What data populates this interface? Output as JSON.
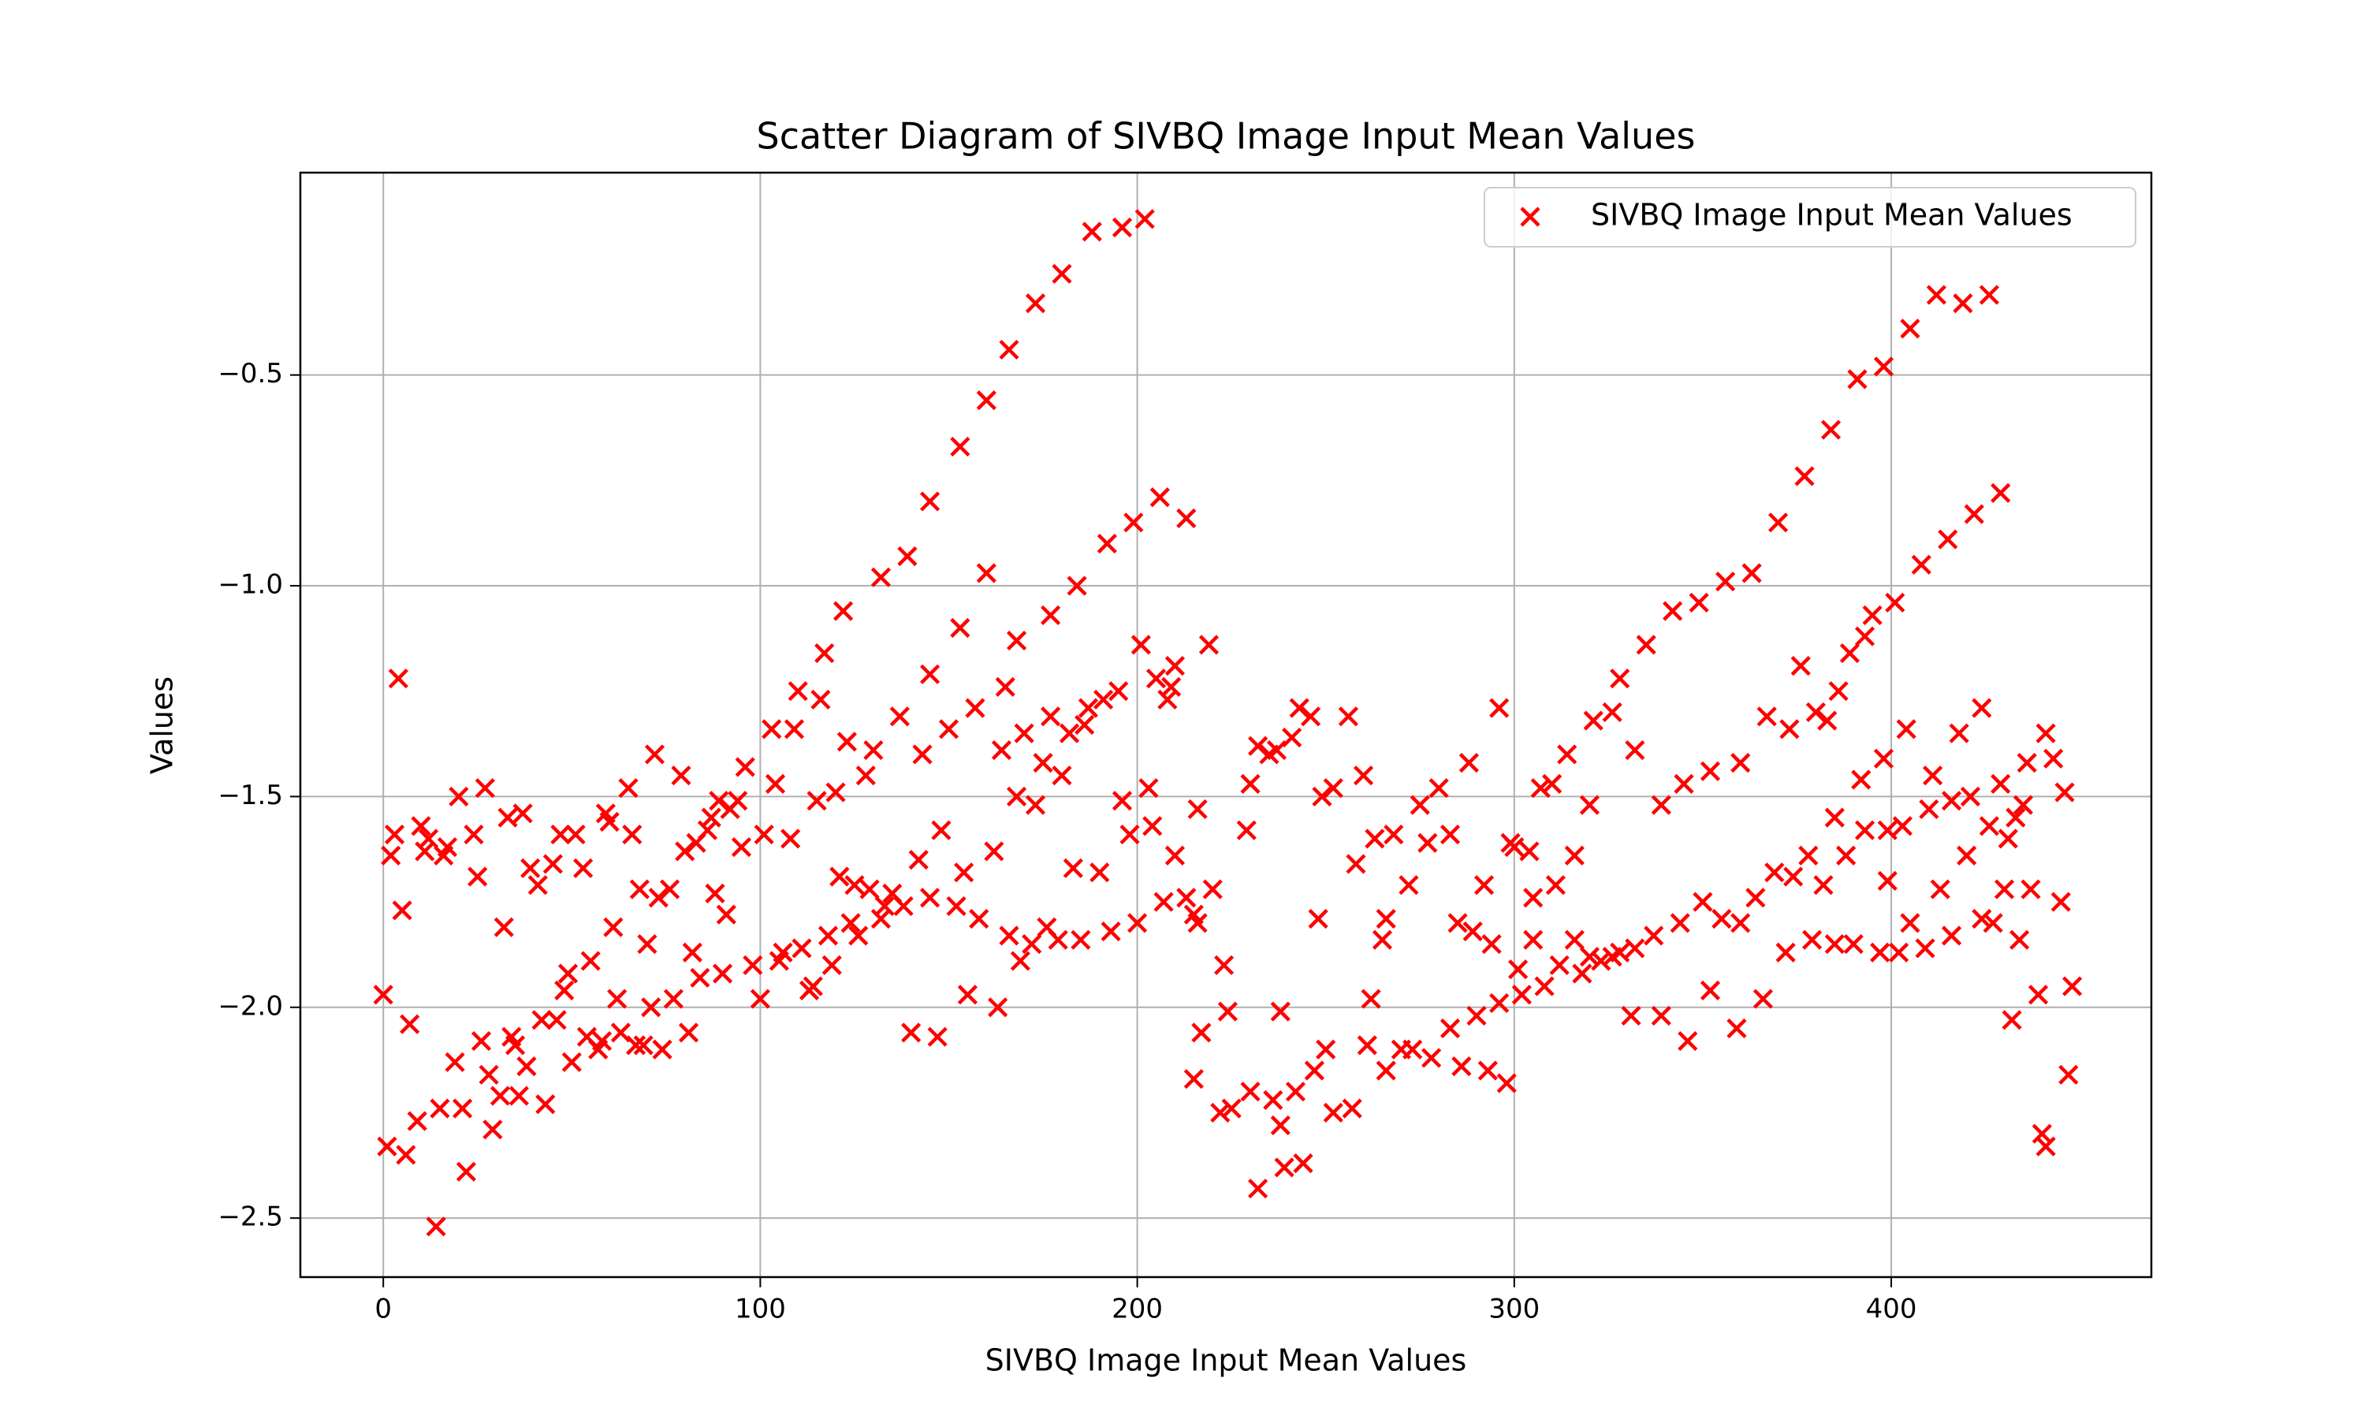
{
  "chart_data": {
    "type": "scatter",
    "title": "Scatter Diagram of SIVBQ Image Input Mean Values",
    "xlabel": "SIVBQ Image Input Mean Values",
    "ylabel": "Values",
    "xlim": [
      -22,
      469
    ],
    "ylim": [
      -2.64,
      -0.02
    ],
    "xticks": [
      0,
      100,
      200,
      300,
      400
    ],
    "yticks": [
      {
        "value": -2.5,
        "label": "−2.5"
      },
      {
        "value": -2.0,
        "label": "−2.0"
      },
      {
        "value": -1.5,
        "label": "−1.5"
      },
      {
        "value": -1.0,
        "label": "−1.0"
      },
      {
        "value": -0.5,
        "label": "−0.5"
      }
    ],
    "grid": true,
    "legend": "upper right",
    "x": [
      117,
      122,
      132,
      139,
      145,
      153,
      160,
      166,
      173,
      180,
      188,
      196,
      202,
      153,
      145,
      168,
      160,
      177,
      184,
      192,
      199,
      206,
      213,
      219,
      210,
      370,
      377,
      384,
      391,
      398,
      405,
      412,
      419,
      426,
      401,
      408,
      415,
      422,
      429,
      395,
      389,
      393,
      386,
      376,
      363,
      356,
      349,
      342,
      335,
      328,
      321,
      314,
      307,
      424,
      418,
      411,
      404,
      398,
      392,
      383,
      380,
      373,
      367,
      360,
      352,
      345,
      339,
      332,
      326,
      441,
      443,
      436,
      429,
      433,
      446,
      440,
      441,
      447,
      448,
      445,
      439,
      437,
      432,
      434,
      430,
      427,
      424,
      420,
      416,
      413,
      409,
      405,
      402,
      399,
      397,
      390,
      385,
      379,
      372,
      366,
      359,
      352,
      346,
      339,
      331,
      435,
      431,
      426,
      421,
      416,
      410,
      403,
      399,
      393,
      388,
      385,
      382,
      378,
      374,
      369,
      364,
      360,
      355,
      350,
      344,
      337,
      332,
      326,
      320,
      316,
      311,
      305,
      300,
      215,
      217,
      222,
      225,
      230,
      232,
      236,
      238,
      239,
      244,
      242,
      247,
      250,
      252,
      257,
      261,
      266,
      270,
      273,
      278,
      283,
      286,
      290,
      293,
      298,
      302,
      308,
      312,
      318,
      323,
      328,
      216,
      220,
      223,
      224,
      229,
      230,
      232,
      235,
      237,
      238,
      241,
      243,
      246,
      249,
      252,
      256,
      258,
      260,
      263,
      266,
      268,
      272,
      275,
      277,
      280,
      283,
      288,
      292,
      296,
      299,
      304,
      310,
      316,
      320,
      248,
      262,
      265,
      285,
      289,
      294,
      296,
      301,
      305,
      0,
      1,
      2,
      3,
      4,
      5,
      6,
      7,
      9,
      10,
      11,
      12,
      14,
      15,
      16,
      17,
      19,
      20,
      21,
      22,
      24,
      25,
      26,
      27,
      28,
      29,
      31,
      32,
      33,
      34,
      35,
      36,
      37,
      38,
      39,
      41,
      42,
      43,
      45,
      46,
      47,
      48,
      49,
      50,
      51,
      53,
      54,
      55,
      57,
      58,
      59,
      60,
      61,
      62,
      63,
      65,
      66,
      67,
      68,
      69,
      70,
      71,
      72,
      73,
      74,
      76,
      77,
      79,
      80,
      81,
      82,
      83,
      84,
      86,
      87,
      88,
      89,
      90,
      91,
      92,
      94,
      95,
      96,
      98,
      100,
      101,
      103,
      104,
      105,
      106,
      108,
      109,
      110,
      111,
      113,
      114,
      115,
      116,
      118,
      119,
      120,
      121,
      123,
      124,
      125,
      126,
      128,
      129,
      130,
      132,
      133,
      135,
      137,
      138,
      140,
      142,
      143,
      145,
      147,
      148,
      150,
      152,
      154,
      155,
      157,
      158,
      162,
      163,
      164,
      165,
      166,
      168,
      169,
      170,
      172,
      173,
      175,
      176,
      177,
      179,
      180,
      182,
      183,
      185,
      186,
      187,
      190,
      191,
      193,
      195,
      196,
      198,
      200,
      201,
      203,
      204,
      205,
      207,
      208,
      209,
      210,
      213,
      215,
      216
    ],
    "series": [
      {
        "name": "SIVBQ Image Input Mean Values",
        "color": "#ff0000",
        "marker": "x",
        "values": [
          -1.16,
          -1.06,
          -0.98,
          -0.93,
          -0.8,
          -0.67,
          -0.56,
          -0.44,
          -0.33,
          -0.26,
          -0.16,
          -0.15,
          -0.13,
          -1.1,
          -1.21,
          -1.13,
          -0.97,
          -1.07,
          -1.0,
          -0.9,
          -0.85,
          -0.79,
          -0.84,
          -1.14,
          -1.19,
          -0.85,
          -0.74,
          -0.63,
          -0.51,
          -0.48,
          -0.39,
          -0.31,
          -0.33,
          -0.31,
          -1.04,
          -0.95,
          -0.89,
          -0.83,
          -0.78,
          -1.07,
          -1.16,
          -1.12,
          -1.25,
          -1.19,
          -0.97,
          -0.99,
          -1.04,
          -1.06,
          -1.14,
          -1.22,
          -1.32,
          -1.4,
          -1.48,
          -1.29,
          -1.35,
          -1.45,
          -1.34,
          -1.41,
          -1.46,
          -1.32,
          -1.3,
          -1.34,
          -1.31,
          -1.42,
          -1.44,
          -1.47,
          -1.52,
          -1.39,
          -1.3,
          -1.35,
          -1.41,
          -1.42,
          -1.47,
          -1.55,
          -1.49,
          -2.3,
          -2.33,
          -2.16,
          -1.95,
          -1.75,
          -1.97,
          -1.72,
          -2.03,
          -1.84,
          -1.72,
          -1.8,
          -1.79,
          -1.64,
          -1.83,
          -1.72,
          -1.86,
          -1.8,
          -1.87,
          -1.7,
          -1.87,
          -1.85,
          -1.85,
          -1.84,
          -1.87,
          -1.98,
          -2.05,
          -1.96,
          -2.08,
          -2.02,
          -2.02,
          -1.52,
          -1.6,
          -1.57,
          -1.5,
          -1.51,
          -1.53,
          -1.57,
          -1.58,
          -1.58,
          -1.64,
          -1.55,
          -1.71,
          -1.64,
          -1.69,
          -1.68,
          -1.74,
          -1.8,
          -1.79,
          -1.75,
          -1.8,
          -1.83,
          -1.86,
          -1.88,
          -1.88,
          -1.84,
          -1.71,
          -1.74,
          -1.62,
          -2.17,
          -2.06,
          -2.25,
          -2.24,
          -2.2,
          -2.43,
          -2.22,
          -2.28,
          -2.38,
          -2.37,
          -2.2,
          -2.15,
          -2.1,
          -2.25,
          -2.24,
          -2.09,
          -2.15,
          -2.1,
          -2.1,
          -2.12,
          -2.05,
          -2.14,
          -2.02,
          -2.15,
          -2.18,
          -1.97,
          -1.95,
          -1.9,
          -1.92,
          -1.89,
          -1.87,
          -1.53,
          -1.72,
          -1.9,
          -2.01,
          -1.58,
          -1.47,
          -1.38,
          -1.4,
          -1.39,
          -2.01,
          -1.36,
          -1.29,
          -1.31,
          -1.5,
          -1.48,
          -1.31,
          -1.66,
          -1.45,
          -1.6,
          -1.79,
          -1.59,
          -1.71,
          -1.52,
          -1.61,
          -1.48,
          -1.59,
          -1.42,
          -1.71,
          -1.29,
          -1.61,
          -1.63,
          -1.47,
          -1.64,
          -1.52,
          -1.79,
          -1.98,
          -1.84,
          -1.8,
          -1.82,
          -1.85,
          -1.99,
          -1.91,
          -1.84,
          -1.97,
          -2.33,
          -1.64,
          -1.59,
          -1.22,
          -1.77,
          -2.35,
          -2.04,
          -2.27,
          -1.57,
          -1.63,
          -1.6,
          -2.52,
          -2.24,
          -1.64,
          -1.62,
          -2.13,
          -1.5,
          -2.24,
          -2.39,
          -1.59,
          -1.69,
          -2.08,
          -1.48,
          -2.16,
          -2.29,
          -2.21,
          -1.81,
          -1.55,
          -2.07,
          -2.09,
          -2.21,
          -1.54,
          -2.14,
          -1.67,
          -1.71,
          -2.03,
          -2.23,
          -1.66,
          -2.03,
          -1.59,
          -1.96,
          -1.92,
          -2.13,
          -1.59,
          -1.67,
          -2.07,
          -1.89,
          -2.1,
          -2.08,
          -1.54,
          -1.56,
          -1.81,
          -1.98,
          -2.06,
          -1.48,
          -1.59,
          -2.09,
          -1.72,
          -2.09,
          -1.85,
          -2.0,
          -1.4,
          -1.74,
          -2.1,
          -1.72,
          -1.98,
          -1.45,
          -1.63,
          -2.06,
          -1.87,
          -1.61,
          -1.93,
          -1.58,
          -1.55,
          -1.73,
          -1.51,
          -1.92,
          -1.78,
          -1.53,
          -1.51,
          -1.62,
          -1.43,
          -1.9,
          -1.98,
          -1.59,
          -1.34,
          -1.47,
          -1.89,
          -1.87,
          -1.6,
          -1.34,
          -1.25,
          -1.86,
          -1.96,
          -1.95,
          -1.51,
          -1.27,
          -1.83,
          -1.9,
          -1.49,
          -1.69,
          -1.37,
          -1.8,
          -1.71,
          -1.83,
          -1.45,
          -1.72,
          -1.39,
          -1.79,
          -1.76,
          -1.73,
          -1.31,
          -1.76,
          -2.06,
          -1.65,
          -1.4,
          -1.74,
          -2.07,
          -1.58,
          -1.34,
          -1.76,
          -1.68,
          -1.97,
          -1.29,
          -1.79,
          -1.63,
          -2.0,
          -1.39,
          -1.24,
          -1.83,
          -1.5,
          -1.89,
          -1.35,
          -1.85,
          -1.52,
          -1.42,
          -1.81,
          -1.31,
          -1.84,
          -1.45,
          -1.35,
          -1.67,
          -1.84,
          -1.33,
          -1.29,
          -1.68,
          -1.27,
          -1.82,
          -1.25,
          -1.51,
          -1.59,
          -1.8,
          -1.14,
          -1.48,
          -1.57,
          -1.22,
          -1.75,
          -1.27,
          -1.24,
          -1.64,
          -1.74,
          -1.78,
          -1.8
        ]
      }
    ]
  }
}
